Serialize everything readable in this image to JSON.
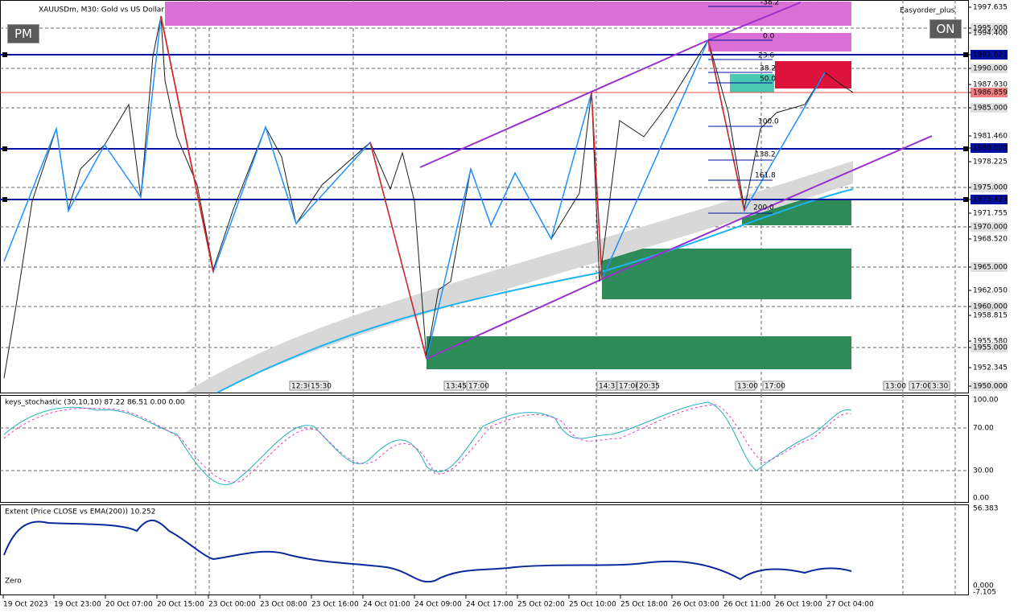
{
  "header": {
    "symbol": "XAUUSDm, M30:  Gold vs US Dollar",
    "pm_button": "PM",
    "on_button": "ON",
    "ea_name": "Easyorder_plus"
  },
  "price_axis": [
    "1997.635",
    "1995.000",
    "1994.400",
    "1991.621",
    "1990.000",
    "1987.930",
    "1986.859",
    "1985.000",
    "1981.460",
    "1980.000",
    "1978.225",
    "1975.000",
    "1973.423",
    "1971.755",
    "1970.000",
    "1968.520",
    "1965.000",
    "1962.050",
    "1960.000",
    "1958.815",
    "1955.580",
    "1955.000",
    "1952.345",
    "1950.000"
  ],
  "time_axis": [
    "19 Oct 2023",
    "19 Oct 23:00",
    "20 Oct 07:00",
    "20 Oct 15:00",
    "23 Oct 00:00",
    "23 Oct 08:00",
    "23 Oct 16:00",
    "24 Oct 01:00",
    "24 Oct 09:00",
    "24 Oct 17:00",
    "25 Oct 02:00",
    "25 Oct 10:00",
    "25 Oct 18:00",
    "26 Oct 03:00",
    "26 Oct 11:00",
    "26 Oct 19:00",
    "27 Oct 04:00"
  ],
  "fib_levels": [
    "-38.2",
    "0.0",
    "23.6",
    "38.2",
    "50.0",
    "100.0",
    "138.2",
    "161.8",
    "200.0"
  ],
  "time_markers": [
    "12:30",
    "15:30",
    "13:45",
    "17:00",
    "14:3",
    "17:00",
    "20:35",
    "13:00",
    "17:00",
    "13:00",
    "17:00",
    "3:30"
  ],
  "stochastic": {
    "label": "keys_stochastic (30,10,10) 87.22 86.51 0.00 0.00",
    "axis": [
      "100.00",
      "70.00",
      "30.00",
      "0.00"
    ]
  },
  "extent": {
    "label": "Extent (Price CLOSE vs EMA(200)) 10.252",
    "zero_label": "Zero",
    "axis": [
      "56.383",
      "0.000",
      "-7.105"
    ]
  }
}
